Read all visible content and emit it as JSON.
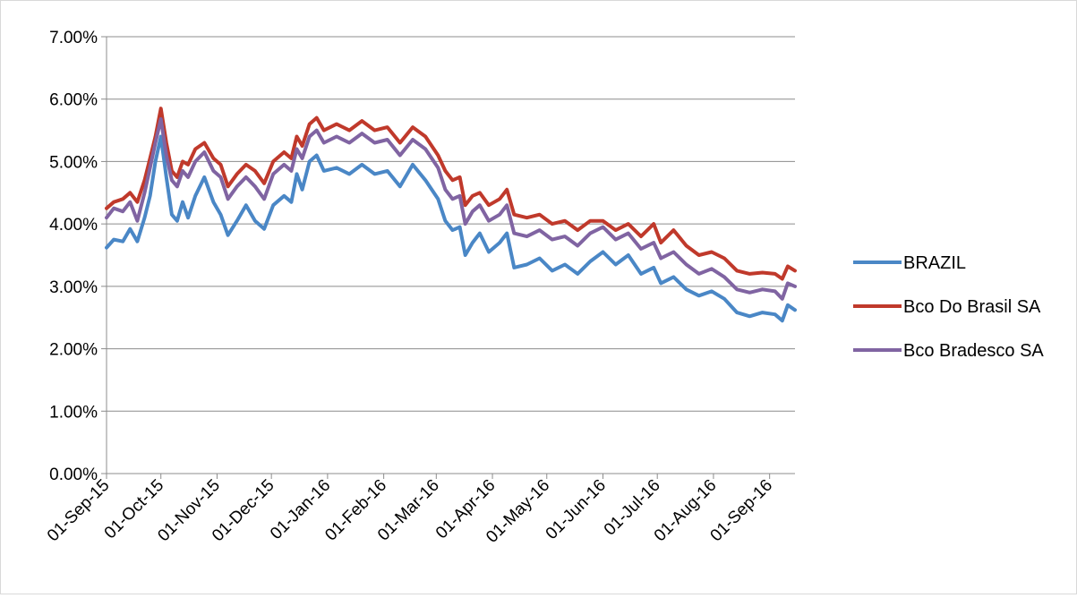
{
  "chart_data": {
    "type": "line",
    "title": "",
    "xlabel": "",
    "ylabel": "",
    "ylim": [
      0,
      0.07
    ],
    "y_tick_labels": [
      "0.00%",
      "1.00%",
      "2.00%",
      "3.00%",
      "4.00%",
      "5.00%",
      "6.00%",
      "7.00%"
    ],
    "x_tick_labels": [
      "01-Sep-15",
      "01-Oct-15",
      "01-Nov-15",
      "01-Dec-15",
      "01-Jan-16",
      "01-Feb-16",
      "01-Mar-16",
      "01-Apr-16",
      "01-May-16",
      "01-Jun-16",
      "01-Jul-16",
      "01-Aug-16",
      "01-Sep-16"
    ],
    "xlim": [
      "2015-09-01",
      "2016-09-15"
    ],
    "grid": true,
    "legend_position": "right",
    "series": [
      {
        "name": "BRAZIL",
        "color": "#4a87c6",
        "points": [
          [
            "2015-09-01",
            3.62
          ],
          [
            "2015-09-05",
            3.75
          ],
          [
            "2015-09-10",
            3.72
          ],
          [
            "2015-09-14",
            3.92
          ],
          [
            "2015-09-18",
            3.72
          ],
          [
            "2015-09-22",
            4.1
          ],
          [
            "2015-09-25",
            4.45
          ],
          [
            "2015-09-28",
            5.0
          ],
          [
            "2015-10-01",
            5.4
          ],
          [
            "2015-10-04",
            4.75
          ],
          [
            "2015-10-07",
            4.15
          ],
          [
            "2015-10-10",
            4.05
          ],
          [
            "2015-10-13",
            4.35
          ],
          [
            "2015-10-16",
            4.1
          ],
          [
            "2015-10-20",
            4.45
          ],
          [
            "2015-10-25",
            4.75
          ],
          [
            "2015-10-30",
            4.35
          ],
          [
            "2015-11-03",
            4.15
          ],
          [
            "2015-11-07",
            3.82
          ],
          [
            "2015-11-12",
            4.05
          ],
          [
            "2015-11-17",
            4.3
          ],
          [
            "2015-11-22",
            4.05
          ],
          [
            "2015-11-27",
            3.92
          ],
          [
            "2015-12-02",
            4.3
          ],
          [
            "2015-12-08",
            4.45
          ],
          [
            "2015-12-12",
            4.35
          ],
          [
            "2015-12-15",
            4.8
          ],
          [
            "2015-12-18",
            4.55
          ],
          [
            "2015-12-22",
            5.0
          ],
          [
            "2015-12-26",
            5.1
          ],
          [
            "2015-12-30",
            4.85
          ],
          [
            "2016-01-06",
            4.9
          ],
          [
            "2016-01-13",
            4.8
          ],
          [
            "2016-01-20",
            4.95
          ],
          [
            "2016-01-27",
            4.8
          ],
          [
            "2016-02-03",
            4.85
          ],
          [
            "2016-02-10",
            4.6
          ],
          [
            "2016-02-17",
            4.95
          ],
          [
            "2016-02-24",
            4.7
          ],
          [
            "2016-03-02",
            4.4
          ],
          [
            "2016-03-06",
            4.05
          ],
          [
            "2016-03-10",
            3.9
          ],
          [
            "2016-03-14",
            3.95
          ],
          [
            "2016-03-17",
            3.5
          ],
          [
            "2016-03-21",
            3.7
          ],
          [
            "2016-03-25",
            3.85
          ],
          [
            "2016-03-30",
            3.55
          ],
          [
            "2016-04-05",
            3.7
          ],
          [
            "2016-04-09",
            3.85
          ],
          [
            "2016-04-13",
            3.3
          ],
          [
            "2016-04-20",
            3.35
          ],
          [
            "2016-04-27",
            3.45
          ],
          [
            "2016-05-04",
            3.25
          ],
          [
            "2016-05-11",
            3.35
          ],
          [
            "2016-05-18",
            3.2
          ],
          [
            "2016-05-25",
            3.4
          ],
          [
            "2016-06-01",
            3.55
          ],
          [
            "2016-06-08",
            3.35
          ],
          [
            "2016-06-15",
            3.5
          ],
          [
            "2016-06-22",
            3.2
          ],
          [
            "2016-06-29",
            3.3
          ],
          [
            "2016-07-03",
            3.05
          ],
          [
            "2016-07-10",
            3.15
          ],
          [
            "2016-07-17",
            2.95
          ],
          [
            "2016-07-24",
            2.85
          ],
          [
            "2016-07-31",
            2.92
          ],
          [
            "2016-08-07",
            2.8
          ],
          [
            "2016-08-14",
            2.58
          ],
          [
            "2016-08-21",
            2.52
          ],
          [
            "2016-08-28",
            2.58
          ],
          [
            "2016-09-04",
            2.55
          ],
          [
            "2016-09-08",
            2.45
          ],
          [
            "2016-09-11",
            2.7
          ],
          [
            "2016-09-15",
            2.62
          ]
        ]
      },
      {
        "name": "Bco Do Brasil SA",
        "color": "#c0392b",
        "points": [
          [
            "2015-09-01",
            4.25
          ],
          [
            "2015-09-05",
            4.35
          ],
          [
            "2015-09-10",
            4.4
          ],
          [
            "2015-09-14",
            4.5
          ],
          [
            "2015-09-18",
            4.35
          ],
          [
            "2015-09-22",
            4.7
          ],
          [
            "2015-09-25",
            5.05
          ],
          [
            "2015-09-28",
            5.4
          ],
          [
            "2015-10-01",
            5.85
          ],
          [
            "2015-10-04",
            5.3
          ],
          [
            "2015-10-07",
            4.85
          ],
          [
            "2015-10-10",
            4.75
          ],
          [
            "2015-10-13",
            5.0
          ],
          [
            "2015-10-16",
            4.95
          ],
          [
            "2015-10-20",
            5.2
          ],
          [
            "2015-10-25",
            5.3
          ],
          [
            "2015-10-30",
            5.05
          ],
          [
            "2015-11-03",
            4.95
          ],
          [
            "2015-11-07",
            4.6
          ],
          [
            "2015-11-12",
            4.8
          ],
          [
            "2015-11-17",
            4.95
          ],
          [
            "2015-11-22",
            4.85
          ],
          [
            "2015-11-27",
            4.65
          ],
          [
            "2015-12-02",
            5.0
          ],
          [
            "2015-12-08",
            5.15
          ],
          [
            "2015-12-12",
            5.05
          ],
          [
            "2015-12-15",
            5.4
          ],
          [
            "2015-12-18",
            5.25
          ],
          [
            "2015-12-22",
            5.6
          ],
          [
            "2015-12-26",
            5.7
          ],
          [
            "2015-12-30",
            5.5
          ],
          [
            "2016-01-06",
            5.6
          ],
          [
            "2016-01-13",
            5.5
          ],
          [
            "2016-01-20",
            5.65
          ],
          [
            "2016-01-27",
            5.5
          ],
          [
            "2016-02-03",
            5.55
          ],
          [
            "2016-02-10",
            5.3
          ],
          [
            "2016-02-17",
            5.55
          ],
          [
            "2016-02-24",
            5.4
          ],
          [
            "2016-03-02",
            5.1
          ],
          [
            "2016-03-06",
            4.85
          ],
          [
            "2016-03-10",
            4.7
          ],
          [
            "2016-03-14",
            4.75
          ],
          [
            "2016-03-17",
            4.3
          ],
          [
            "2016-03-21",
            4.45
          ],
          [
            "2016-03-25",
            4.5
          ],
          [
            "2016-03-30",
            4.3
          ],
          [
            "2016-04-05",
            4.4
          ],
          [
            "2016-04-09",
            4.55
          ],
          [
            "2016-04-13",
            4.15
          ],
          [
            "2016-04-20",
            4.1
          ],
          [
            "2016-04-27",
            4.15
          ],
          [
            "2016-05-04",
            4.0
          ],
          [
            "2016-05-11",
            4.05
          ],
          [
            "2016-05-18",
            3.9
          ],
          [
            "2016-05-25",
            4.05
          ],
          [
            "2016-06-01",
            4.05
          ],
          [
            "2016-06-08",
            3.9
          ],
          [
            "2016-06-15",
            4.0
          ],
          [
            "2016-06-22",
            3.8
          ],
          [
            "2016-06-29",
            4.0
          ],
          [
            "2016-07-03",
            3.7
          ],
          [
            "2016-07-10",
            3.9
          ],
          [
            "2016-07-17",
            3.65
          ],
          [
            "2016-07-24",
            3.5
          ],
          [
            "2016-07-31",
            3.55
          ],
          [
            "2016-08-07",
            3.45
          ],
          [
            "2016-08-14",
            3.25
          ],
          [
            "2016-08-21",
            3.2
          ],
          [
            "2016-08-28",
            3.22
          ],
          [
            "2016-09-04",
            3.2
          ],
          [
            "2016-09-08",
            3.12
          ],
          [
            "2016-09-11",
            3.32
          ],
          [
            "2016-09-15",
            3.25
          ]
        ]
      },
      {
        "name": "Bco Bradesco SA",
        "color": "#8064a2",
        "points": [
          [
            "2015-09-01",
            4.1
          ],
          [
            "2015-09-05",
            4.25
          ],
          [
            "2015-09-10",
            4.2
          ],
          [
            "2015-09-14",
            4.35
          ],
          [
            "2015-09-18",
            4.05
          ],
          [
            "2015-09-22",
            4.5
          ],
          [
            "2015-09-25",
            4.9
          ],
          [
            "2015-09-28",
            5.3
          ],
          [
            "2015-10-01",
            5.68
          ],
          [
            "2015-10-04",
            5.1
          ],
          [
            "2015-10-07",
            4.7
          ],
          [
            "2015-10-10",
            4.6
          ],
          [
            "2015-10-13",
            4.85
          ],
          [
            "2015-10-16",
            4.75
          ],
          [
            "2015-10-20",
            5.0
          ],
          [
            "2015-10-25",
            5.15
          ],
          [
            "2015-10-30",
            4.85
          ],
          [
            "2015-11-03",
            4.75
          ],
          [
            "2015-11-07",
            4.4
          ],
          [
            "2015-11-12",
            4.6
          ],
          [
            "2015-11-17",
            4.75
          ],
          [
            "2015-11-22",
            4.6
          ],
          [
            "2015-11-27",
            4.4
          ],
          [
            "2015-12-02",
            4.8
          ],
          [
            "2015-12-08",
            4.95
          ],
          [
            "2015-12-12",
            4.85
          ],
          [
            "2015-12-15",
            5.2
          ],
          [
            "2015-12-18",
            5.05
          ],
          [
            "2015-12-22",
            5.4
          ],
          [
            "2015-12-26",
            5.5
          ],
          [
            "2015-12-30",
            5.3
          ],
          [
            "2016-01-06",
            5.4
          ],
          [
            "2016-01-13",
            5.3
          ],
          [
            "2016-01-20",
            5.45
          ],
          [
            "2016-01-27",
            5.3
          ],
          [
            "2016-02-03",
            5.35
          ],
          [
            "2016-02-10",
            5.1
          ],
          [
            "2016-02-17",
            5.35
          ],
          [
            "2016-02-24",
            5.2
          ],
          [
            "2016-03-02",
            4.9
          ],
          [
            "2016-03-06",
            4.55
          ],
          [
            "2016-03-10",
            4.4
          ],
          [
            "2016-03-14",
            4.45
          ],
          [
            "2016-03-17",
            4.0
          ],
          [
            "2016-03-21",
            4.2
          ],
          [
            "2016-03-25",
            4.3
          ],
          [
            "2016-03-30",
            4.05
          ],
          [
            "2016-04-05",
            4.15
          ],
          [
            "2016-04-09",
            4.3
          ],
          [
            "2016-04-13",
            3.85
          ],
          [
            "2016-04-20",
            3.8
          ],
          [
            "2016-04-27",
            3.9
          ],
          [
            "2016-05-04",
            3.75
          ],
          [
            "2016-05-11",
            3.8
          ],
          [
            "2016-05-18",
            3.65
          ],
          [
            "2016-05-25",
            3.85
          ],
          [
            "2016-06-01",
            3.95
          ],
          [
            "2016-06-08",
            3.75
          ],
          [
            "2016-06-15",
            3.85
          ],
          [
            "2016-06-22",
            3.6
          ],
          [
            "2016-06-29",
            3.7
          ],
          [
            "2016-07-03",
            3.45
          ],
          [
            "2016-07-10",
            3.55
          ],
          [
            "2016-07-17",
            3.35
          ],
          [
            "2016-07-24",
            3.2
          ],
          [
            "2016-07-31",
            3.28
          ],
          [
            "2016-08-07",
            3.15
          ],
          [
            "2016-08-14",
            2.95
          ],
          [
            "2016-08-21",
            2.9
          ],
          [
            "2016-08-28",
            2.95
          ],
          [
            "2016-09-04",
            2.92
          ],
          [
            "2016-09-08",
            2.8
          ],
          [
            "2016-09-11",
            3.05
          ],
          [
            "2016-09-15",
            3.0
          ]
        ]
      }
    ]
  }
}
